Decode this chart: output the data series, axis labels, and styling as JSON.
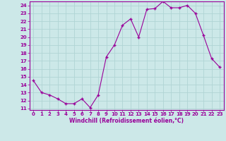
{
  "x": [
    0,
    1,
    2,
    3,
    4,
    5,
    6,
    7,
    8,
    9,
    10,
    11,
    12,
    13,
    14,
    15,
    16,
    17,
    18,
    19,
    20,
    21,
    22,
    23
  ],
  "y": [
    14.5,
    13.0,
    12.7,
    12.2,
    11.6,
    11.6,
    12.2,
    11.1,
    12.7,
    17.5,
    19.0,
    21.5,
    22.3,
    20.0,
    23.5,
    23.6,
    24.5,
    23.7,
    23.7,
    24.0,
    23.0,
    20.2,
    17.3,
    16.2
  ],
  "line_color": "#990099",
  "marker": "+",
  "bg_color": "#cce8e8",
  "grid_color": "#b0d4d4",
  "xlabel": "Windchill (Refroidissement éolien,°C)",
  "xlabel_color": "#990099",
  "tick_color": "#990099",
  "spine_color": "#990099",
  "ylim": [
    10.8,
    24.5
  ],
  "xlim": [
    -0.5,
    23.5
  ],
  "yticks": [
    11,
    12,
    13,
    14,
    15,
    16,
    17,
    18,
    19,
    20,
    21,
    22,
    23,
    24
  ],
  "xticks": [
    0,
    1,
    2,
    3,
    4,
    5,
    6,
    7,
    8,
    9,
    10,
    11,
    12,
    13,
    14,
    15,
    16,
    17,
    18,
    19,
    20,
    21,
    22,
    23
  ],
  "tick_fontsize": 5.0,
  "xlabel_fontsize": 5.5
}
